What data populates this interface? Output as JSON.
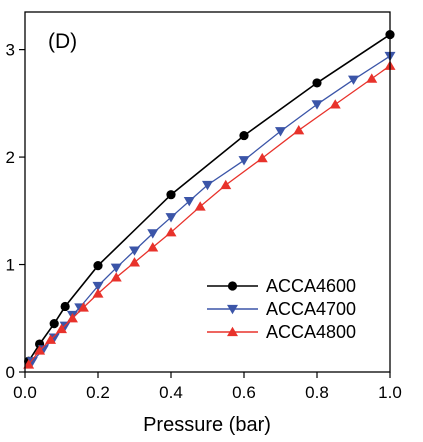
{
  "chart_data": {
    "type": "line",
    "panel_label": "(D)",
    "xlabel": "Pressure (bar)",
    "ylabel": "",
    "xlim": [
      0.0,
      1.0
    ],
    "ylim": [
      0,
      3.35
    ],
    "x_ticks": [
      0.0,
      0.2,
      0.4,
      0.6,
      0.8,
      1.0
    ],
    "x_tick_labels": [
      "0.0",
      "0.2",
      "0.4",
      "0.6",
      "0.8",
      "1.0"
    ],
    "y_ticks": [
      0,
      1,
      2,
      3
    ],
    "y_tick_labels": [
      "0",
      "1",
      "2",
      "3"
    ],
    "grid": false,
    "legend_position": "bottom-right",
    "series": [
      {
        "name": "ACCA4600",
        "color": "#000000",
        "marker": "circle",
        "x": [
          0.01,
          0.04,
          0.08,
          0.11,
          0.2,
          0.4,
          0.6,
          0.8,
          1.0
        ],
        "y": [
          0.1,
          0.26,
          0.45,
          0.61,
          0.99,
          1.65,
          2.2,
          2.69,
          3.14
        ]
      },
      {
        "name": "ACCA4700",
        "color": "#3b55a8",
        "marker": "triangle-down",
        "x": [
          0.02,
          0.05,
          0.08,
          0.11,
          0.13,
          0.15,
          0.2,
          0.25,
          0.3,
          0.35,
          0.4,
          0.45,
          0.5,
          0.6,
          0.7,
          0.8,
          0.9,
          1.0
        ],
        "y": [
          0.1,
          0.21,
          0.32,
          0.43,
          0.53,
          0.6,
          0.8,
          0.97,
          1.13,
          1.29,
          1.44,
          1.59,
          1.74,
          1.97,
          2.24,
          2.49,
          2.72,
          2.94
        ]
      },
      {
        "name": "ACCA4800",
        "color": "#e8322b",
        "marker": "triangle-up",
        "x": [
          0.01,
          0.04,
          0.07,
          0.1,
          0.13,
          0.16,
          0.2,
          0.25,
          0.3,
          0.35,
          0.4,
          0.48,
          0.55,
          0.65,
          0.75,
          0.85,
          0.95,
          1.0
        ],
        "y": [
          0.07,
          0.2,
          0.3,
          0.4,
          0.5,
          0.6,
          0.73,
          0.88,
          1.02,
          1.16,
          1.3,
          1.54,
          1.74,
          1.99,
          2.25,
          2.49,
          2.73,
          2.85
        ]
      }
    ]
  }
}
